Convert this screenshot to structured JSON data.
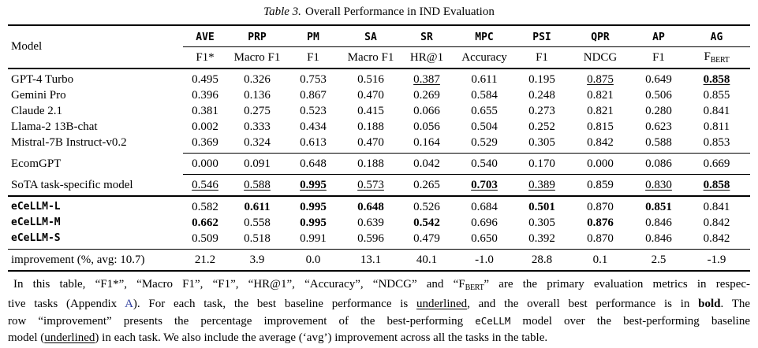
{
  "caption": {
    "label": "Table 3.",
    "text": "Overall Performance in IND Evaluation"
  },
  "table": {
    "model_header": "Model",
    "task_columns": [
      "AVE",
      "PRP",
      "PM",
      "SA",
      "SR",
      "MPC",
      "PSI",
      "QPR",
      "AP",
      "AG"
    ],
    "metric_columns": [
      "F1*",
      "Macro F1",
      "F1",
      "Macro F1",
      "HR@1",
      "Accuracy",
      "F1",
      "NDCG",
      "F1"
    ],
    "fbert": {
      "main": "F",
      "sub": "BERT"
    },
    "rows": [
      {
        "name": "GPT-4 Turbo",
        "mono": false,
        "space_top": true,
        "values": [
          {
            "v": "0.495"
          },
          {
            "v": "0.326"
          },
          {
            "v": "0.753"
          },
          {
            "v": "0.516"
          },
          {
            "v": "0.387",
            "u": true
          },
          {
            "v": "0.611"
          },
          {
            "v": "0.195"
          },
          {
            "v": "0.875",
            "u": true
          },
          {
            "v": "0.649"
          },
          {
            "v": "0.858",
            "b": true,
            "u": true
          }
        ]
      },
      {
        "name": "Gemini Pro",
        "mono": false,
        "values": [
          {
            "v": "0.396"
          },
          {
            "v": "0.136"
          },
          {
            "v": "0.867"
          },
          {
            "v": "0.470"
          },
          {
            "v": "0.269"
          },
          {
            "v": "0.584"
          },
          {
            "v": "0.248"
          },
          {
            "v": "0.821"
          },
          {
            "v": "0.506"
          },
          {
            "v": "0.855"
          }
        ]
      },
      {
        "name": "Claude 2.1",
        "mono": false,
        "values": [
          {
            "v": "0.381"
          },
          {
            "v": "0.275"
          },
          {
            "v": "0.523"
          },
          {
            "v": "0.415"
          },
          {
            "v": "0.066"
          },
          {
            "v": "0.655"
          },
          {
            "v": "0.273"
          },
          {
            "v": "0.821"
          },
          {
            "v": "0.280"
          },
          {
            "v": "0.841"
          }
        ]
      },
      {
        "name": "Llama-2 13B-chat",
        "mono": false,
        "values": [
          {
            "v": "0.002"
          },
          {
            "v": "0.333"
          },
          {
            "v": "0.434"
          },
          {
            "v": "0.188"
          },
          {
            "v": "0.056"
          },
          {
            "v": "0.504"
          },
          {
            "v": "0.252"
          },
          {
            "v": "0.815"
          },
          {
            "v": "0.623"
          },
          {
            "v": "0.811"
          }
        ]
      },
      {
        "name": "Mistral-7B Instruct-v0.2",
        "mono": false,
        "rule": "partial",
        "space_bottom": true,
        "values": [
          {
            "v": "0.369"
          },
          {
            "v": "0.324"
          },
          {
            "v": "0.613"
          },
          {
            "v": "0.470"
          },
          {
            "v": "0.164"
          },
          {
            "v": "0.529"
          },
          {
            "v": "0.305"
          },
          {
            "v": "0.842"
          },
          {
            "v": "0.588"
          },
          {
            "v": "0.853"
          }
        ]
      },
      {
        "name": "EcomGPT",
        "mono": false,
        "rule": "partial",
        "space_top": true,
        "space_bottom": true,
        "values": [
          {
            "v": "0.000"
          },
          {
            "v": "0.091"
          },
          {
            "v": "0.648"
          },
          {
            "v": "0.188"
          },
          {
            "v": "0.042"
          },
          {
            "v": "0.540"
          },
          {
            "v": "0.170"
          },
          {
            "v": "0.000"
          },
          {
            "v": "0.086"
          },
          {
            "v": "0.669"
          }
        ]
      },
      {
        "name": "SoTA task-specific model",
        "mono": false,
        "rule": "full-thick",
        "space_top": true,
        "space_bottom": true,
        "values": [
          {
            "v": "0.546",
            "u": true
          },
          {
            "v": "0.588",
            "u": true
          },
          {
            "v": "0.995",
            "b": true,
            "u": true
          },
          {
            "v": "0.573",
            "u": true
          },
          {
            "v": "0.265"
          },
          {
            "v": "0.703",
            "b": true,
            "u": true
          },
          {
            "v": "0.389",
            "u": true
          },
          {
            "v": "0.859"
          },
          {
            "v": "0.830",
            "u": true
          },
          {
            "v": "0.858",
            "b": true,
            "u": true
          }
        ]
      },
      {
        "name": "eCeLLM-L",
        "mono": true,
        "space_top": true,
        "values": [
          {
            "v": "0.582"
          },
          {
            "v": "0.611",
            "b": true
          },
          {
            "v": "0.995",
            "b": true
          },
          {
            "v": "0.648",
            "b": true
          },
          {
            "v": "0.526"
          },
          {
            "v": "0.684"
          },
          {
            "v": "0.501",
            "b": true
          },
          {
            "v": "0.870"
          },
          {
            "v": "0.851",
            "b": true
          },
          {
            "v": "0.841"
          }
        ]
      },
      {
        "name": "eCeLLM-M",
        "mono": true,
        "values": [
          {
            "v": "0.662",
            "b": true
          },
          {
            "v": "0.558"
          },
          {
            "v": "0.995",
            "b": true
          },
          {
            "v": "0.639"
          },
          {
            "v": "0.542",
            "b": true
          },
          {
            "v": "0.696"
          },
          {
            "v": "0.305"
          },
          {
            "v": "0.876",
            "b": true
          },
          {
            "v": "0.846"
          },
          {
            "v": "0.842"
          }
        ]
      },
      {
        "name": "eCeLLM-S",
        "mono": true,
        "rule": "full-thin",
        "space_bottom": true,
        "values": [
          {
            "v": "0.509"
          },
          {
            "v": "0.518"
          },
          {
            "v": "0.991"
          },
          {
            "v": "0.596"
          },
          {
            "v": "0.479"
          },
          {
            "v": "0.650"
          },
          {
            "v": "0.392"
          },
          {
            "v": "0.870"
          },
          {
            "v": "0.846"
          },
          {
            "v": "0.842"
          }
        ]
      },
      {
        "name": "improvement (%, avg: 10.7)",
        "mono": false,
        "rule": "full-thick",
        "space_top": true,
        "space_bottom": true,
        "values": [
          {
            "v": "21.2"
          },
          {
            "v": "3.9"
          },
          {
            "v": "0.0"
          },
          {
            "v": "13.1"
          },
          {
            "v": "40.1"
          },
          {
            "v": "-1.0"
          },
          {
            "v": "28.8"
          },
          {
            "v": "0.1"
          },
          {
            "v": "2.5"
          },
          {
            "v": "-1.9"
          }
        ]
      }
    ]
  },
  "footnote": {
    "lines": [
      [
        {
          "t": "In this table, “F1*”, “Macro F1”, “F1”, “HR@1”, “Accuracy”, “NDCG” and “F",
          "s": "plain"
        },
        {
          "t": "BERT",
          "s": "sub"
        },
        {
          "t": "” are the primary evaluation metrics in respec-",
          "s": "plain"
        }
      ],
      [
        {
          "t": "tive tasks (Appendix ",
          "s": "plain"
        },
        {
          "t": "A",
          "s": "link"
        },
        {
          "t": "). For each task, the best baseline performance is ",
          "s": "plain"
        },
        {
          "t": "underlined",
          "s": "u"
        },
        {
          "t": ", and the overall best performance is in ",
          "s": "plain"
        },
        {
          "t": "bold",
          "s": "b"
        },
        {
          "t": ". The",
          "s": "plain"
        }
      ],
      [
        {
          "t": "row “improvement” presents the percentage improvement of the best-performing ",
          "s": "plain"
        },
        {
          "t": "eCeLLM",
          "s": "mono"
        },
        {
          "t": " model over the best-performing baseline",
          "s": "plain"
        }
      ],
      [
        {
          "t": "model (",
          "s": "plain"
        },
        {
          "t": "underlined",
          "s": "u"
        },
        {
          "t": ") in each task. We also include the average (‘avg’) improvement across all the tasks in the table.",
          "s": "plain"
        }
      ]
    ]
  },
  "colors": {
    "text": "#000000",
    "link": "#2f3e9e",
    "background": "#ffffff"
  }
}
